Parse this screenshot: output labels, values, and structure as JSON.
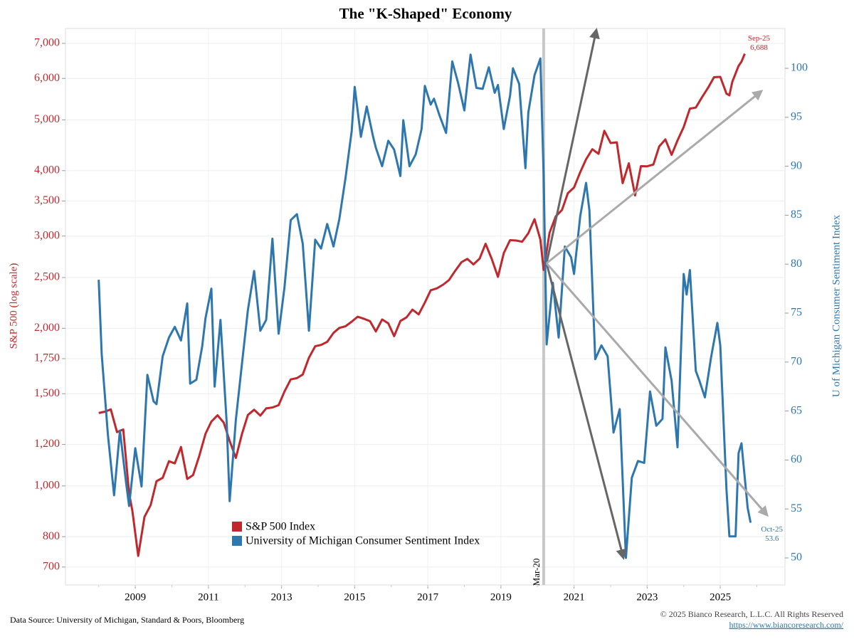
{
  "chart_data": {
    "type": "line",
    "title": "The \"K-Shaped\" Economy",
    "y_label": "S&P 500 (log scale)",
    "y2_label": "U of Michigan Consumer Sentiment Index",
    "ylog": true,
    "grid": true,
    "xlim": [
      2007.09,
      2026.77
    ],
    "xticks": [
      2009,
      2011,
      2013,
      2015,
      2017,
      2019,
      2021,
      2023,
      2025
    ],
    "ylim": [
      647,
      7474
    ],
    "yticks": [
      700,
      800,
      {
        "value": 1000,
        "label": "1,000"
      },
      {
        "value": 1200,
        "label": "1,200"
      },
      {
        "value": 1500,
        "label": "1,500"
      },
      {
        "value": 1750,
        "label": "1,750"
      },
      {
        "value": 2000,
        "label": "2,000"
      },
      {
        "value": 2500,
        "label": "2,500"
      },
      {
        "value": 3000,
        "label": "3,000"
      },
      {
        "value": 3500,
        "label": "3,500"
      },
      {
        "value": 4000,
        "label": "4,000"
      },
      {
        "value": 5000,
        "label": "5,000"
      },
      {
        "value": 6000,
        "label": "6,000"
      },
      {
        "value": 7000,
        "label": "7,000"
      }
    ],
    "y2lim": [
      47.24,
      104.07
    ],
    "y2ticks": [
      50,
      55,
      60,
      65,
      70,
      75,
      80,
      85,
      90,
      95,
      100
    ],
    "series": [
      {
        "name": "S&P 500 Index",
        "color": "#c0282d",
        "x": [
          2008.0,
          2008.17,
          2008.33,
          2008.5,
          2008.67,
          2008.83,
          2008.92,
          2009.08,
          2009.25,
          2009.42,
          2009.58,
          2009.75,
          2009.92,
          2010.08,
          2010.25,
          2010.42,
          2010.58,
          2010.75,
          2010.92,
          2011.08,
          2011.25,
          2011.42,
          2011.58,
          2011.75,
          2011.92,
          2012.08,
          2012.25,
          2012.42,
          2012.58,
          2012.75,
          2012.92,
          2013.08,
          2013.25,
          2013.42,
          2013.58,
          2013.75,
          2013.92,
          2014.08,
          2014.25,
          2014.42,
          2014.58,
          2014.75,
          2014.92,
          2015.08,
          2015.25,
          2015.42,
          2015.58,
          2015.75,
          2015.92,
          2016.08,
          2016.25,
          2016.42,
          2016.58,
          2016.75,
          2016.92,
          2017.08,
          2017.25,
          2017.42,
          2017.58,
          2017.75,
          2017.92,
          2018.08,
          2018.25,
          2018.42,
          2018.58,
          2018.75,
          2018.92,
          2019.08,
          2019.25,
          2019.42,
          2019.58,
          2019.75,
          2019.92,
          2020.08,
          2020.17,
          2020.33,
          2020.5,
          2020.67,
          2020.83,
          2021.0,
          2021.17,
          2021.33,
          2021.5,
          2021.67,
          2021.83,
          2022.0,
          2022.17,
          2022.33,
          2022.5,
          2022.67,
          2022.83,
          2023.0,
          2023.17,
          2023.33,
          2023.5,
          2023.67,
          2023.83,
          2024.0,
          2024.17,
          2024.33,
          2024.5,
          2024.67,
          2024.83,
          2025.0,
          2025.17,
          2025.25,
          2025.33,
          2025.5,
          2025.58,
          2025.67
        ],
        "values": [
          1378,
          1386,
          1400,
          1267,
          1282,
          968,
          896,
          735,
          873,
          919,
          1021,
          1036,
          1115,
          1104,
          1187,
          1031,
          1049,
          1141,
          1258,
          1327,
          1364,
          1321,
          1219,
          1131,
          1258,
          1366,
          1398,
          1362,
          1406,
          1412,
          1426,
          1514,
          1597,
          1606,
          1632,
          1757,
          1848,
          1859,
          1884,
          1960,
          2003,
          2018,
          2059,
          2104,
          2086,
          2063,
          1972,
          2079,
          2044,
          1932,
          2065,
          2099,
          2171,
          2126,
          2239,
          2364,
          2384,
          2423,
          2472,
          2575,
          2674,
          2714,
          2648,
          2718,
          2901,
          2712,
          2507,
          2784,
          2946,
          2942,
          2926,
          3038,
          3231,
          2954,
          2585,
          3044,
          3271,
          3363,
          3622,
          3714,
          3973,
          4204,
          4395,
          4307,
          4766,
          4516,
          4530,
          3785,
          4130,
          3586,
          4080,
          4077,
          4109,
          4450,
          4589,
          4288,
          4568,
          4846,
          5254,
          5278,
          5522,
          5762,
          6032,
          6041,
          5612,
          5569,
          5912,
          6339,
          6460,
          6688
        ],
        "end_label": [
          "Sep-25",
          "6,688"
        ]
      },
      {
        "name": "University of Michigan Consumer Sentiment Index",
        "color": "#2e77ae",
        "axis": "y2",
        "x": [
          2008.0,
          2008.08,
          2008.25,
          2008.42,
          2008.58,
          2008.75,
          2008.83,
          2009.0,
          2009.17,
          2009.33,
          2009.5,
          2009.58,
          2009.75,
          2009.92,
          2010.08,
          2010.25,
          2010.42,
          2010.5,
          2010.67,
          2010.83,
          2010.92,
          2011.08,
          2011.17,
          2011.33,
          2011.5,
          2011.58,
          2011.75,
          2011.92,
          2012.08,
          2012.25,
          2012.42,
          2012.58,
          2012.75,
          2012.92,
          2013.08,
          2013.25,
          2013.42,
          2013.58,
          2013.75,
          2013.92,
          2014.08,
          2014.25,
          2014.42,
          2014.58,
          2014.75,
          2014.92,
          2015.0,
          2015.17,
          2015.33,
          2015.5,
          2015.58,
          2015.75,
          2015.92,
          2016.08,
          2016.25,
          2016.33,
          2016.5,
          2016.67,
          2016.83,
          2016.92,
          2017.08,
          2017.17,
          2017.33,
          2017.5,
          2017.67,
          2017.83,
          2018.0,
          2018.17,
          2018.33,
          2018.5,
          2018.67,
          2018.83,
          2018.92,
          2019.08,
          2019.25,
          2019.33,
          2019.5,
          2019.67,
          2019.75,
          2019.92,
          2020.08,
          2020.17,
          2020.25,
          2020.42,
          2020.58,
          2020.75,
          2020.92,
          2021.0,
          2021.17,
          2021.33,
          2021.42,
          2021.58,
          2021.75,
          2021.92,
          2022.08,
          2022.25,
          2022.42,
          2022.58,
          2022.75,
          2022.92,
          2023.08,
          2023.25,
          2023.42,
          2023.5,
          2023.67,
          2023.83,
          2024.0,
          2024.08,
          2024.17,
          2024.33,
          2024.42,
          2024.58,
          2024.75,
          2024.92,
          2025.0,
          2025.17,
          2025.25,
          2025.42,
          2025.5,
          2025.58,
          2025.67,
          2025.75,
          2025.83
        ],
        "values": [
          78.4,
          70.8,
          62.6,
          56.4,
          63,
          57.6,
          55.3,
          61.2,
          57.3,
          68.7,
          66,
          65.7,
          70.6,
          72.5,
          73.6,
          72.2,
          76,
          67.8,
          68.2,
          71.6,
          74.5,
          77.5,
          67.5,
          74.3,
          63.7,
          55.8,
          64.1,
          69.9,
          75.3,
          79.3,
          73.2,
          74.3,
          82.6,
          72.9,
          77.6,
          84.5,
          85.1,
          82.1,
          73.2,
          82.5,
          81.6,
          84.1,
          81.8,
          84.6,
          88.8,
          93.6,
          98.1,
          93,
          96.1,
          93.1,
          91.9,
          90,
          92.6,
          91.7,
          89,
          94.7,
          90,
          91.2,
          93.8,
          98.2,
          96.3,
          96.9,
          95.1,
          93.4,
          100.7,
          98.5,
          95.7,
          101.4,
          98,
          97.9,
          100.1,
          97.5,
          98.3,
          93.8,
          97.2,
          100,
          98.4,
          89.8,
          95.5,
          99.3,
          101,
          89.1,
          71.8,
          78.1,
          72.5,
          81.8,
          80.7,
          79,
          84.9,
          88.3,
          85.5,
          70.3,
          71.7,
          70.6,
          62.8,
          65.2,
          50,
          58.2,
          59.9,
          59.7,
          67,
          63.5,
          64.2,
          71.5,
          68.1,
          61.3,
          79,
          76.9,
          79.4,
          69.1,
          68.2,
          66.4,
          70.5,
          74,
          71.7,
          57,
          52.2,
          52.2,
          60.7,
          61.7,
          58.2,
          55.1,
          53.6
        ],
        "end_label": [
          "Oct-25",
          "53.6"
        ]
      }
    ],
    "vline": {
      "label": "Mar-20",
      "x": 2020.17
    },
    "source": "Data Source: University of Michigan, Standard & Poors, Bloomberg",
    "copyright": "© 2025 Bianco Research, L.L.C. All Rights Reserved",
    "url": "https://www.biancoresearch.com/"
  }
}
